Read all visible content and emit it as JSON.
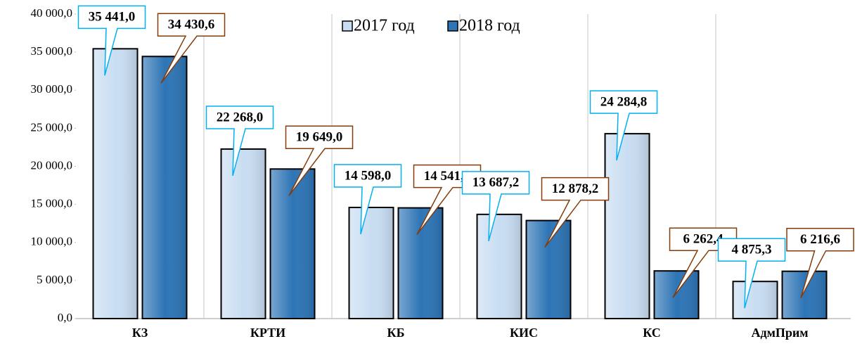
{
  "chart_data": {
    "type": "bar",
    "categories": [
      "КЗ",
      "КРТИ",
      "КБ",
      "КИС",
      "КС",
      "АдмПрим"
    ],
    "series": [
      {
        "name": "2017 год",
        "color": "#c9ddf2",
        "label_border": "#00b0f0",
        "values": [
          35441.0,
          22268.0,
          14598.0,
          13687.2,
          24284.8,
          4875.3
        ],
        "value_labels": [
          "35 441,0",
          "22 268,0",
          "14 598,0",
          "13 687,2",
          "24 284,8",
          "4 875,3"
        ]
      },
      {
        "name": "2018 год",
        "color": "#2e75b6",
        "label_border": "#843c0c",
        "values": [
          34430.6,
          19649.0,
          14541.3,
          12878.2,
          6262.4,
          6216.6
        ],
        "value_labels": [
          "34 430,6",
          "19 649,0",
          "14 541,3",
          "12 878,2",
          "6 262,4",
          "6 216,6"
        ]
      }
    ],
    "ylim": [
      0,
      40000
    ],
    "yticks": [
      {
        "value": 0,
        "label": "0,0"
      },
      {
        "value": 5000,
        "label": "5 000,0"
      },
      {
        "value": 10000,
        "label": "10 000,0"
      },
      {
        "value": 15000,
        "label": "15 000,0"
      },
      {
        "value": 20000,
        "label": "20 000,0"
      },
      {
        "value": 25000,
        "label": "25 000,0"
      },
      {
        "value": 30000,
        "label": "30 000,0"
      },
      {
        "value": 35000,
        "label": "35 000,0"
      },
      {
        "value": 40000,
        "label": "40 000,0"
      }
    ],
    "legend": "top"
  }
}
